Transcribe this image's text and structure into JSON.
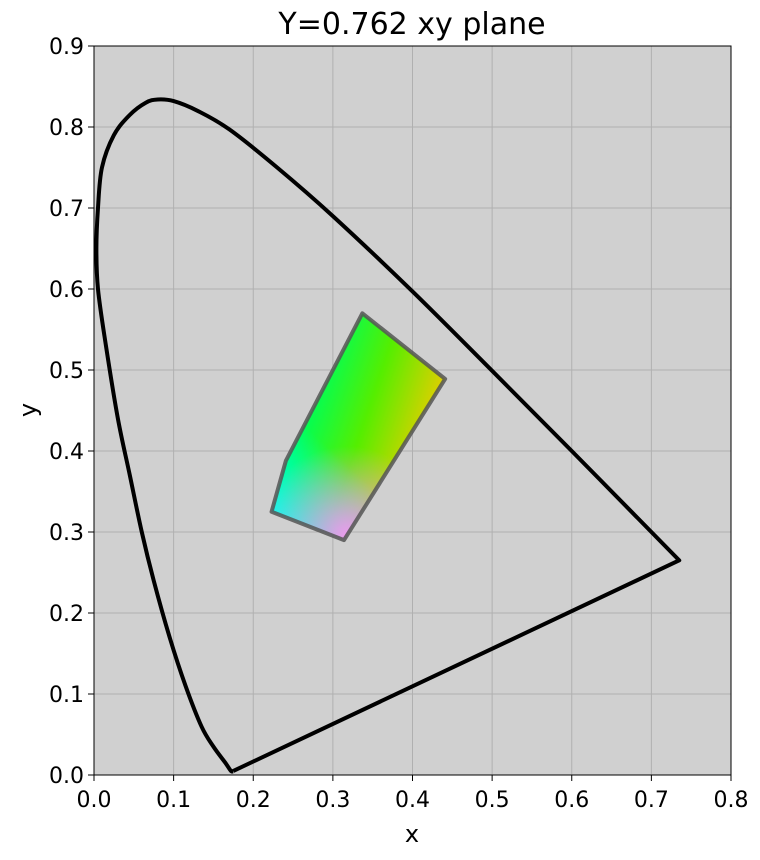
{
  "chart_data": {
    "type": "line",
    "title": "Y=0.762 xy plane",
    "xlabel": "x",
    "ylabel": "y",
    "xlim": [
      0.0,
      0.8
    ],
    "ylim": [
      0.0,
      0.9
    ],
    "xticks": [
      "0.0",
      "0.1",
      "0.2",
      "0.3",
      "0.4",
      "0.5",
      "0.6",
      "0.7",
      "0.8"
    ],
    "yticks": [
      "0.0",
      "0.1",
      "0.2",
      "0.3",
      "0.4",
      "0.5",
      "0.6",
      "0.7",
      "0.8",
      "0.9"
    ],
    "grid": true,
    "background_color": "#d0d0d0",
    "grid_color": "#b0b0b0",
    "spectral_locus": {
      "color": "#000000",
      "points": [
        [
          0.175,
          0.005
        ],
        [
          0.172,
          0.005
        ],
        [
          0.165,
          0.015
        ],
        [
          0.15,
          0.035
        ],
        [
          0.135,
          0.06
        ],
        [
          0.115,
          0.11
        ],
        [
          0.095,
          0.17
        ],
        [
          0.075,
          0.24
        ],
        [
          0.06,
          0.3
        ],
        [
          0.045,
          0.37
        ],
        [
          0.03,
          0.44
        ],
        [
          0.015,
          0.53
        ],
        [
          0.005,
          0.6
        ],
        [
          0.003,
          0.65
        ],
        [
          0.005,
          0.7
        ],
        [
          0.01,
          0.75
        ],
        [
          0.025,
          0.79
        ],
        [
          0.045,
          0.815
        ],
        [
          0.065,
          0.83
        ],
        [
          0.08,
          0.834
        ],
        [
          0.1,
          0.832
        ],
        [
          0.13,
          0.82
        ],
        [
          0.17,
          0.797
        ],
        [
          0.23,
          0.75
        ],
        [
          0.3,
          0.69
        ],
        [
          0.4,
          0.597
        ],
        [
          0.5,
          0.499
        ],
        [
          0.6,
          0.4
        ],
        [
          0.7,
          0.3
        ],
        [
          0.735,
          0.265
        ]
      ]
    },
    "gamut": {
      "edge_color": "#555555",
      "vertices": [
        {
          "x": 0.337,
          "y": 0.57,
          "color": "#55ee00"
        },
        {
          "x": 0.441,
          "y": 0.489,
          "color": "#eecc00"
        },
        {
          "x": 0.314,
          "y": 0.29,
          "color": "#ee99ee"
        },
        {
          "x": 0.223,
          "y": 0.325,
          "color": "#00ffee"
        },
        {
          "x": 0.241,
          "y": 0.388,
          "color": "#11ffcc"
        }
      ],
      "fill_stops": {
        "green": "#00ff55",
        "lime": "#55ee00",
        "yellow": "#eecc00",
        "cyan": "#00ffee",
        "pink": "#ee99ee"
      }
    }
  }
}
